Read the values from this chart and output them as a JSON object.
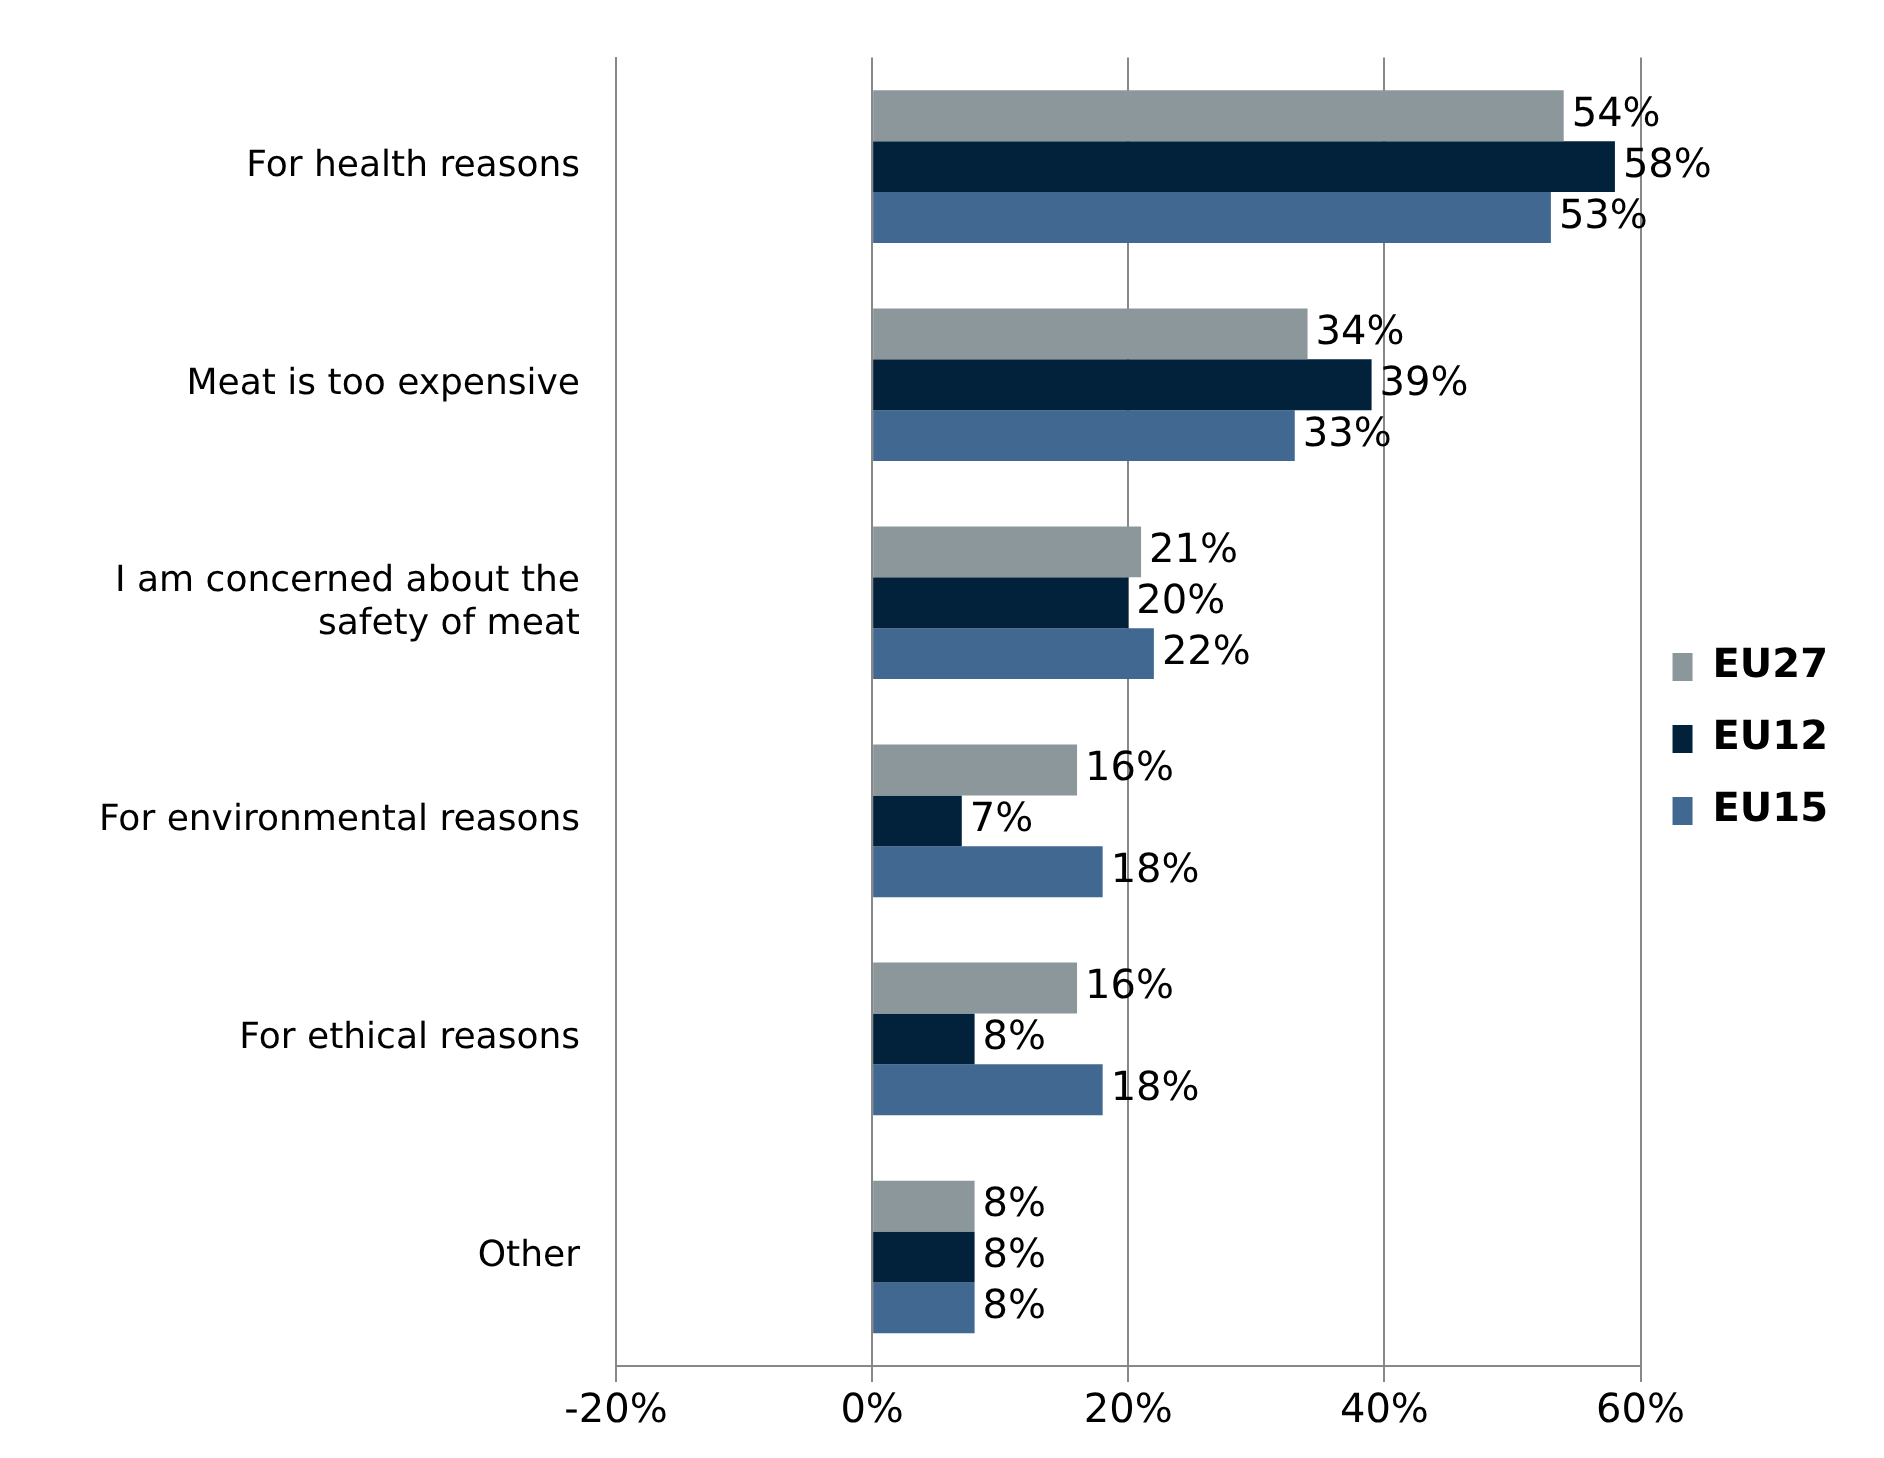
{
  "chart_data": {
    "type": "bar",
    "orientation": "horizontal",
    "categories": [
      "For health reasons",
      "Meat is too expensive",
      "I am concerned about the safety of meat",
      "For environmental reasons",
      "For ethical reasons",
      "Other"
    ],
    "series": [
      {
        "name": "EU27",
        "color": "#8c979c",
        "values": [
          54,
          34,
          21,
          16,
          16,
          8
        ],
        "value_labels": [
          "54%",
          "34%",
          "21%",
          "16%",
          "16%",
          "8%"
        ]
      },
      {
        "name": "EU12",
        "color": "#02223c",
        "values": [
          58,
          39,
          20,
          7,
          8,
          8
        ],
        "value_labels": [
          "58%",
          "39%",
          "20%",
          "7%",
          "8%",
          "8%"
        ]
      },
      {
        "name": "EU15",
        "color": "#416891",
        "values": [
          53,
          33,
          22,
          18,
          18,
          8
        ],
        "value_labels": [
          "53%",
          "33%",
          "22%",
          "18%",
          "18%",
          "8%"
        ]
      }
    ],
    "xlim": [
      -20,
      60
    ],
    "xticks": [
      {
        "value": -20,
        "label": "-20%"
      },
      {
        "value": 0,
        "label": "0%"
      },
      {
        "value": 20,
        "label": "20%"
      },
      {
        "value": 40,
        "label": "40%"
      },
      {
        "value": 60,
        "label": "60%"
      }
    ],
    "grid": "x",
    "legend": "right"
  }
}
